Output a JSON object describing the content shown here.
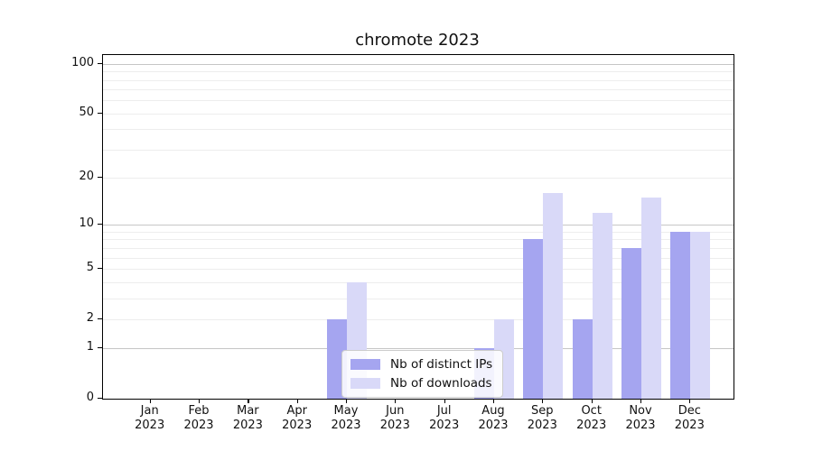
{
  "title": "chromote 2023",
  "chart_data": {
    "type": "bar",
    "title": "chromote 2023",
    "scale": "log1p",
    "categories": [
      "Jan",
      "Feb",
      "Mar",
      "Apr",
      "May",
      "Jun",
      "Jul",
      "Aug",
      "Sep",
      "Oct",
      "Nov",
      "Dec"
    ],
    "category_year": "2023",
    "series": [
      {
        "name": "Nb of distinct IPs",
        "color": "#a5a5f0",
        "values": [
          0,
          0,
          0,
          0,
          2,
          0,
          0,
          1,
          8,
          2,
          7,
          9
        ]
      },
      {
        "name": "Nb of downloads",
        "color": "#d9d9f8",
        "values": [
          0,
          0,
          0,
          0,
          4,
          0,
          0,
          2,
          16,
          12,
          15,
          9
        ]
      }
    ],
    "xlabel": "",
    "ylabel": "",
    "ylim": [
      0,
      113
    ],
    "y_ticks": [
      0,
      1,
      2,
      5,
      10,
      20,
      50,
      100
    ],
    "y_tick_labels": [
      "0",
      "1",
      "2",
      "5",
      "10",
      "20",
      "50",
      "100"
    ],
    "y_major_gridlines": [
      1,
      10,
      100
    ],
    "y_minor_gridlines": [
      2,
      3,
      4,
      5,
      6,
      7,
      8,
      9,
      20,
      30,
      40,
      50,
      60,
      70,
      80,
      90
    ],
    "grid": "on",
    "legend_position": "lower-center-inside"
  },
  "legend": {
    "items": [
      {
        "label": "Nb of distinct IPs",
        "color": "#a5a5f0"
      },
      {
        "label": "Nb of downloads",
        "color": "#d9d9f8"
      }
    ]
  },
  "colors": {
    "series_ips": "#a5a5f0",
    "series_downloads": "#d9d9f8",
    "grid_major": "#c6c6c6",
    "grid_minor": "#ededed",
    "axis": "#000000",
    "text": "#111111",
    "legend_border": "#cccccc",
    "background": "#ffffff"
  }
}
